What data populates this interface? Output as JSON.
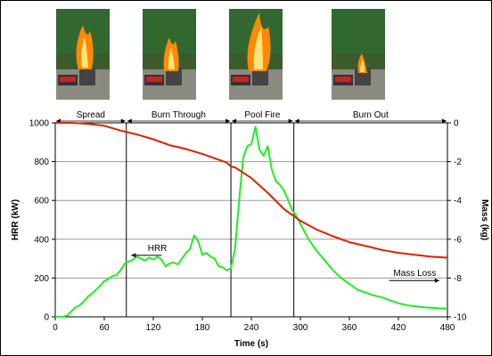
{
  "chart_data": {
    "type": "line",
    "xlabel": "Time (s)",
    "ylabel_left": "HRR (kW)",
    "ylabel_right": "Mass (kg)",
    "xlim": [
      0,
      480
    ],
    "ylim_left": [
      0,
      1000
    ],
    "ylim_right": [
      -10,
      0
    ],
    "x_ticks": [
      "0",
      "60",
      "120",
      "180",
      "240",
      "300",
      "360",
      "420",
      "480"
    ],
    "y_left_ticks": [
      "0",
      "200",
      "400",
      "600",
      "800",
      "1000"
    ],
    "y_right_ticks": [
      "0",
      "-2",
      "-4",
      "-6",
      "-8",
      "-10"
    ],
    "grid": "horizontal",
    "phases": [
      {
        "label": "Spread",
        "start": 0,
        "end": 87
      },
      {
        "label": "Burn Through",
        "start": 87,
        "end": 215
      },
      {
        "label": "Pool Fire",
        "start": 215,
        "end": 292
      },
      {
        "label": "Burn Out",
        "start": 292,
        "end": 480
      }
    ],
    "annotations": [
      {
        "text": "HRR",
        "x": 125,
        "y": 340,
        "arrow_to_x": 93,
        "axis": "left"
      },
      {
        "text": "Mass Loss",
        "x": 440,
        "y": -7.9,
        "arrow_to_x": 470,
        "axis": "right"
      }
    ],
    "series": [
      {
        "name": "HRR",
        "axis": "left",
        "color": "#22ee22",
        "x": [
          0,
          10,
          15,
          20,
          25,
          30,
          35,
          40,
          45,
          50,
          55,
          60,
          65,
          70,
          75,
          80,
          85,
          90,
          95,
          100,
          105,
          110,
          115,
          120,
          125,
          130,
          135,
          140,
          145,
          150,
          155,
          160,
          165,
          170,
          175,
          180,
          185,
          190,
          195,
          200,
          205,
          210,
          215,
          220,
          225,
          230,
          235,
          240,
          245,
          250,
          255,
          260,
          265,
          270,
          275,
          280,
          285,
          290,
          295,
          300,
          305,
          310,
          320,
          330,
          340,
          350,
          360,
          370,
          380,
          390,
          400,
          410,
          420,
          430,
          440,
          450,
          460,
          470,
          480
        ],
        "y": [
          0,
          2,
          8,
          30,
          50,
          60,
          80,
          105,
          120,
          140,
          160,
          185,
          195,
          210,
          215,
          240,
          275,
          285,
          295,
          310,
          300,
          290,
          305,
          295,
          310,
          295,
          260,
          275,
          280,
          270,
          300,
          330,
          350,
          420,
          390,
          320,
          330,
          310,
          300,
          260,
          255,
          240,
          250,
          350,
          600,
          820,
          880,
          890,
          980,
          860,
          830,
          880,
          760,
          700,
          680,
          650,
          600,
          550,
          520,
          480,
          440,
          400,
          340,
          290,
          240,
          200,
          170,
          140,
          125,
          110,
          100,
          85,
          70,
          60,
          55,
          50,
          47,
          44,
          42
        ]
      },
      {
        "name": "Mass Loss",
        "axis": "right",
        "color": "#dd2200",
        "x": [
          0,
          20,
          40,
          60,
          80,
          100,
          120,
          140,
          160,
          180,
          200,
          210,
          215,
          220,
          240,
          260,
          280,
          300,
          320,
          340,
          360,
          380,
          400,
          420,
          440,
          460,
          480
        ],
        "y": [
          0,
          0,
          -0.05,
          -0.15,
          -0.4,
          -0.6,
          -0.85,
          -1.15,
          -1.35,
          -1.6,
          -1.9,
          -2.05,
          -2.25,
          -2.3,
          -2.85,
          -3.6,
          -4.45,
          -5.05,
          -5.5,
          -5.85,
          -6.15,
          -6.35,
          -6.55,
          -6.7,
          -6.8,
          -6.9,
          -6.95
        ]
      }
    ]
  },
  "photos": [
    {
      "phase": "Spread",
      "flame": "large"
    },
    {
      "phase": "Burn Through",
      "flame": "medium"
    },
    {
      "phase": "Pool Fire",
      "flame": "tall"
    },
    {
      "phase": "Burn Out",
      "flame": "small"
    }
  ],
  "colors": {
    "grid": "#999999",
    "photo_background": "#3a5a2a",
    "flame": "#ffb000"
  }
}
